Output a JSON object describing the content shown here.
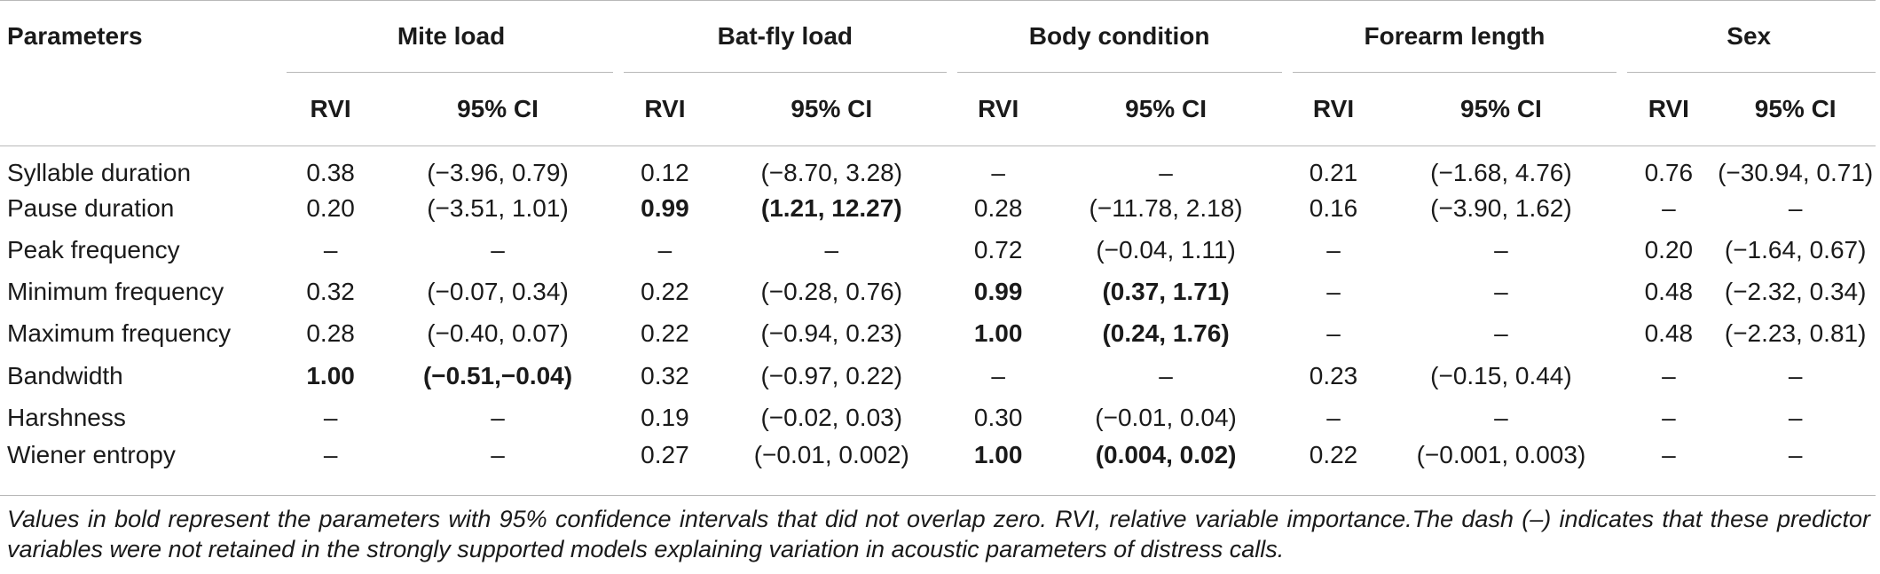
{
  "table": {
    "param_header": "Parameters",
    "groups": [
      "Mite load",
      "Bat-fly load",
      "Body condition",
      "Forearm length",
      "Sex"
    ],
    "subheaders": [
      "RVI",
      "95% CI"
    ],
    "rows": [
      {
        "label": "Syllable duration",
        "cells": [
          {
            "v": "0.38",
            "b": false
          },
          {
            "v": "(−3.96, 0.79)",
            "b": false
          },
          {
            "v": "0.12",
            "b": false
          },
          {
            "v": "(−8.70, 3.28)",
            "b": false
          },
          {
            "v": "–",
            "b": false
          },
          {
            "v": "–",
            "b": false
          },
          {
            "v": "0.21",
            "b": false
          },
          {
            "v": "(−1.68, 4.76)",
            "b": false
          },
          {
            "v": "0.76",
            "b": false
          },
          {
            "v": "(−30.94, 0.71)",
            "b": false
          }
        ]
      },
      {
        "label": "Pause duration",
        "cells": [
          {
            "v": "0.20",
            "b": false
          },
          {
            "v": "(−3.51, 1.01)",
            "b": false
          },
          {
            "v": "0.99",
            "b": true
          },
          {
            "v": "(1.21, 12.27)",
            "b": true
          },
          {
            "v": "0.28",
            "b": false
          },
          {
            "v": "(−11.78, 2.18)",
            "b": false
          },
          {
            "v": "0.16",
            "b": false
          },
          {
            "v": "(−3.90, 1.62)",
            "b": false
          },
          {
            "v": "–",
            "b": false
          },
          {
            "v": "–",
            "b": false
          }
        ]
      },
      {
        "label": "Peak frequency",
        "cells": [
          {
            "v": "–",
            "b": false
          },
          {
            "v": "–",
            "b": false
          },
          {
            "v": "–",
            "b": false
          },
          {
            "v": "–",
            "b": false
          },
          {
            "v": "0.72",
            "b": false
          },
          {
            "v": "(−0.04, 1.11)",
            "b": false
          },
          {
            "v": "–",
            "b": false
          },
          {
            "v": "–",
            "b": false
          },
          {
            "v": "0.20",
            "b": false
          },
          {
            "v": "(−1.64, 0.67)",
            "b": false
          }
        ]
      },
      {
        "label": "Minimum frequency",
        "cells": [
          {
            "v": "0.32",
            "b": false
          },
          {
            "v": "(−0.07, 0.34)",
            "b": false
          },
          {
            "v": "0.22",
            "b": false
          },
          {
            "v": "(−0.28, 0.76)",
            "b": false
          },
          {
            "v": "0.99",
            "b": true
          },
          {
            "v": "(0.37, 1.71)",
            "b": true
          },
          {
            "v": "–",
            "b": false
          },
          {
            "v": "–",
            "b": false
          },
          {
            "v": "0.48",
            "b": false
          },
          {
            "v": "(−2.32, 0.34)",
            "b": false
          }
        ]
      },
      {
        "label": "Maximum frequency",
        "cells": [
          {
            "v": "0.28",
            "b": false
          },
          {
            "v": "(−0.40, 0.07)",
            "b": false
          },
          {
            "v": "0.22",
            "b": false
          },
          {
            "v": "(−0.94, 0.23)",
            "b": false
          },
          {
            "v": "1.00",
            "b": true
          },
          {
            "v": "(0.24, 1.76)",
            "b": true
          },
          {
            "v": "–",
            "b": false
          },
          {
            "v": "–",
            "b": false
          },
          {
            "v": "0.48",
            "b": false
          },
          {
            "v": "(−2.23, 0.81)",
            "b": false
          }
        ]
      },
      {
        "label": "Bandwidth",
        "cells": [
          {
            "v": "1.00",
            "b": true
          },
          {
            "v": "(−0.51,−0.04)",
            "b": true
          },
          {
            "v": "0.32",
            "b": false
          },
          {
            "v": "(−0.97, 0.22)",
            "b": false
          },
          {
            "v": "–",
            "b": false
          },
          {
            "v": "–",
            "b": false
          },
          {
            "v": "0.23",
            "b": false
          },
          {
            "v": "(−0.15, 0.44)",
            "b": false
          },
          {
            "v": "–",
            "b": false
          },
          {
            "v": "–",
            "b": false
          }
        ]
      },
      {
        "label": "Harshness",
        "cells": [
          {
            "v": "–",
            "b": false
          },
          {
            "v": "–",
            "b": false
          },
          {
            "v": "0.19",
            "b": false
          },
          {
            "v": "(−0.02, 0.03)",
            "b": false
          },
          {
            "v": "0.30",
            "b": false
          },
          {
            "v": "(−0.01, 0.04)",
            "b": false
          },
          {
            "v": "–",
            "b": false
          },
          {
            "v": "–",
            "b": false
          },
          {
            "v": "–",
            "b": false
          },
          {
            "v": "–",
            "b": false
          }
        ]
      },
      {
        "label": "Wiener entropy",
        "cells": [
          {
            "v": "–",
            "b": false
          },
          {
            "v": "–",
            "b": false
          },
          {
            "v": "0.27",
            "b": false
          },
          {
            "v": "(−0.01, 0.002)",
            "b": false
          },
          {
            "v": "1.00",
            "b": true
          },
          {
            "v": "(0.004, 0.02)",
            "b": true
          },
          {
            "v": "0.22",
            "b": false
          },
          {
            "v": "(−0.001, 0.003)",
            "b": false
          },
          {
            "v": "–",
            "b": false
          },
          {
            "v": "–",
            "b": false
          }
        ]
      }
    ]
  },
  "footnote": "Values in bold represent the parameters with 95% confidence intervals that did not overlap zero. RVI, relative variable importance.The dash (–) indicates that these predictor variables were not retained in the strongly supported models explaining variation in acoustic parameters of distress calls."
}
